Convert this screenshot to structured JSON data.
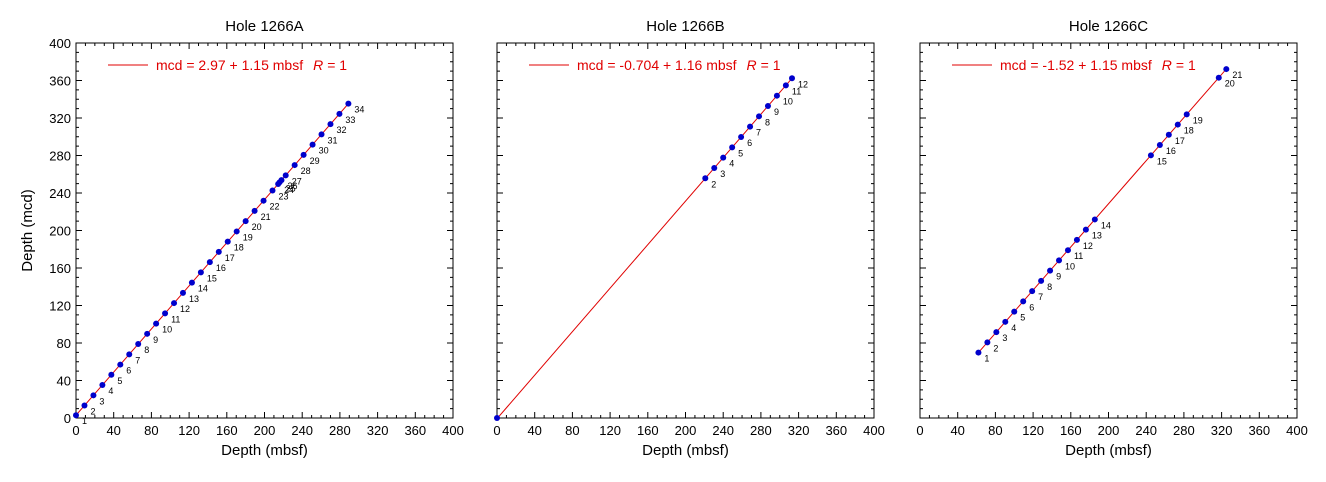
{
  "colors": {
    "point": "#0000cc",
    "fit": "#e00000",
    "axis": "#000000"
  },
  "chart_data": [
    {
      "type": "scatter",
      "title": "Hole 1266A",
      "xlabel": "Depth (mbsf)",
      "ylabel": "Depth (mcd)",
      "xlim": [
        0,
        400
      ],
      "ylim": [
        0,
        400
      ],
      "xticks": [
        "0",
        "40",
        "80",
        "120",
        "160",
        "200",
        "240",
        "280",
        "320",
        "360",
        "400"
      ],
      "yticks": [
        "0",
        "40",
        "80",
        "120",
        "160",
        "200",
        "240",
        "280",
        "320",
        "360",
        "400"
      ],
      "fit": {
        "intercept": 2.97,
        "slope": 1.15,
        "x_range": [
          0,
          290
        ],
        "label": "mcd = 2.97 + 1.15 mbsf",
        "r_label": "R",
        "r_value": "= 1"
      },
      "points": [
        {
          "label": "1",
          "x": 0.0,
          "y": 2.97
        },
        {
          "label": "2",
          "x": 9.0,
          "y": 13.3
        },
        {
          "label": "3",
          "x": 18.5,
          "y": 24.2
        },
        {
          "label": "4",
          "x": 28.0,
          "y": 35.2
        },
        {
          "label": "5",
          "x": 37.5,
          "y": 46.1
        },
        {
          "label": "6",
          "x": 47.0,
          "y": 57.0
        },
        {
          "label": "7",
          "x": 56.5,
          "y": 67.9
        },
        {
          "label": "8",
          "x": 66.0,
          "y": 78.9
        },
        {
          "label": "9",
          "x": 75.5,
          "y": 89.8
        },
        {
          "label": "10",
          "x": 85.0,
          "y": 100.7
        },
        {
          "label": "11",
          "x": 94.5,
          "y": 111.6
        },
        {
          "label": "12",
          "x": 104.0,
          "y": 122.6
        },
        {
          "label": "13",
          "x": 113.5,
          "y": 133.5
        },
        {
          "label": "14",
          "x": 123.0,
          "y": 144.4
        },
        {
          "label": "15",
          "x": 132.5,
          "y": 155.3
        },
        {
          "label": "16",
          "x": 142.0,
          "y": 166.3
        },
        {
          "label": "17",
          "x": 151.5,
          "y": 177.2
        },
        {
          "label": "18",
          "x": 161.0,
          "y": 188.1
        },
        {
          "label": "19",
          "x": 170.5,
          "y": 199.0
        },
        {
          "label": "20",
          "x": 180.0,
          "y": 210.0
        },
        {
          "label": "21",
          "x": 189.5,
          "y": 220.9
        },
        {
          "label": "22",
          "x": 199.0,
          "y": 231.8
        },
        {
          "label": "23",
          "x": 208.5,
          "y": 242.7
        },
        {
          "label": "24",
          "x": 214.5,
          "y": 249.6
        },
        {
          "label": "25",
          "x": 216.0,
          "y": 251.4
        },
        {
          "label": "26",
          "x": 218.0,
          "y": 253.7
        },
        {
          "label": "27",
          "x": 222.5,
          "y": 258.8
        },
        {
          "label": "28",
          "x": 232.0,
          "y": 269.8
        },
        {
          "label": "29",
          "x": 241.5,
          "y": 280.7
        },
        {
          "label": "30",
          "x": 251.0,
          "y": 291.6
        },
        {
          "label": "31",
          "x": 260.5,
          "y": 302.5
        },
        {
          "label": "32",
          "x": 270.0,
          "y": 313.5
        },
        {
          "label": "33",
          "x": 279.5,
          "y": 324.4
        },
        {
          "label": "34",
          "x": 289.0,
          "y": 335.3
        }
      ]
    },
    {
      "type": "scatter",
      "title": "Hole 1266B",
      "xlabel": "Depth (mbsf)",
      "ylabel": "",
      "xlim": [
        0,
        400
      ],
      "ylim": [
        0,
        400
      ],
      "xticks": [
        "0",
        "40",
        "80",
        "120",
        "160",
        "200",
        "240",
        "280",
        "320",
        "360",
        "400"
      ],
      "yticks": [],
      "fit": {
        "intercept": -0.704,
        "slope": 1.16,
        "x_range": [
          0,
          313
        ],
        "label": "mcd = -0.704 + 1.16 mbsf",
        "r_label": "R",
        "r_value": "= 1"
      },
      "points": [
        {
          "label": "",
          "x": 0.0,
          "y": 0.0
        },
        {
          "label": "2",
          "x": 221.0,
          "y": 255.7
        },
        {
          "label": "3",
          "x": 230.5,
          "y": 266.7
        },
        {
          "label": "4",
          "x": 240.0,
          "y": 277.7
        },
        {
          "label": "5",
          "x": 249.5,
          "y": 288.7
        },
        {
          "label": "6",
          "x": 259.0,
          "y": 299.7
        },
        {
          "label": "7",
          "x": 268.5,
          "y": 310.8
        },
        {
          "label": "8",
          "x": 278.0,
          "y": 321.8
        },
        {
          "label": "9",
          "x": 287.5,
          "y": 332.8
        },
        {
          "label": "10",
          "x": 297.0,
          "y": 343.8
        },
        {
          "label": "11",
          "x": 306.5,
          "y": 354.8
        },
        {
          "label": "12",
          "x": 313.0,
          "y": 362.4
        }
      ]
    },
    {
      "type": "scatter",
      "title": "Hole 1266C",
      "xlabel": "Depth (mbsf)",
      "ylabel": "",
      "xlim": [
        0,
        400
      ],
      "ylim": [
        0,
        400
      ],
      "xticks": [
        "0",
        "40",
        "80",
        "120",
        "160",
        "200",
        "240",
        "280",
        "320",
        "360",
        "400"
      ],
      "yticks": [],
      "fit": {
        "intercept": -1.52,
        "slope": 1.15,
        "x_range": [
          62,
          326
        ],
        "label": "mcd = -1.52 + 1.15 mbsf",
        "r_label": "R",
        "r_value": "= 1"
      },
      "points": [
        {
          "label": "1",
          "x": 62.0,
          "y": 69.8
        },
        {
          "label": "2",
          "x": 71.5,
          "y": 80.7
        },
        {
          "label": "3",
          "x": 81.0,
          "y": 91.6
        },
        {
          "label": "4",
          "x": 90.5,
          "y": 102.6
        },
        {
          "label": "5",
          "x": 100.0,
          "y": 113.5
        },
        {
          "label": "6",
          "x": 109.5,
          "y": 124.4
        },
        {
          "label": "7",
          "x": 119.0,
          "y": 135.3
        },
        {
          "label": "8",
          "x": 128.5,
          "y": 146.3
        },
        {
          "label": "9",
          "x": 138.0,
          "y": 157.2
        },
        {
          "label": "10",
          "x": 147.5,
          "y": 168.1
        },
        {
          "label": "11",
          "x": 157.0,
          "y": 179.0
        },
        {
          "label": "12",
          "x": 166.5,
          "y": 190.0
        },
        {
          "label": "13",
          "x": 176.0,
          "y": 200.9
        },
        {
          "label": "14",
          "x": 185.5,
          "y": 211.8
        },
        {
          "label": "15",
          "x": 245.0,
          "y": 280.2
        },
        {
          "label": "16",
          "x": 254.5,
          "y": 291.2
        },
        {
          "label": "17",
          "x": 264.0,
          "y": 302.1
        },
        {
          "label": "18",
          "x": 273.5,
          "y": 313.0
        },
        {
          "label": "19",
          "x": 283.0,
          "y": 323.9
        },
        {
          "label": "20",
          "x": 317.0,
          "y": 363.0
        },
        {
          "label": "21",
          "x": 325.0,
          "y": 372.2
        }
      ]
    }
  ]
}
